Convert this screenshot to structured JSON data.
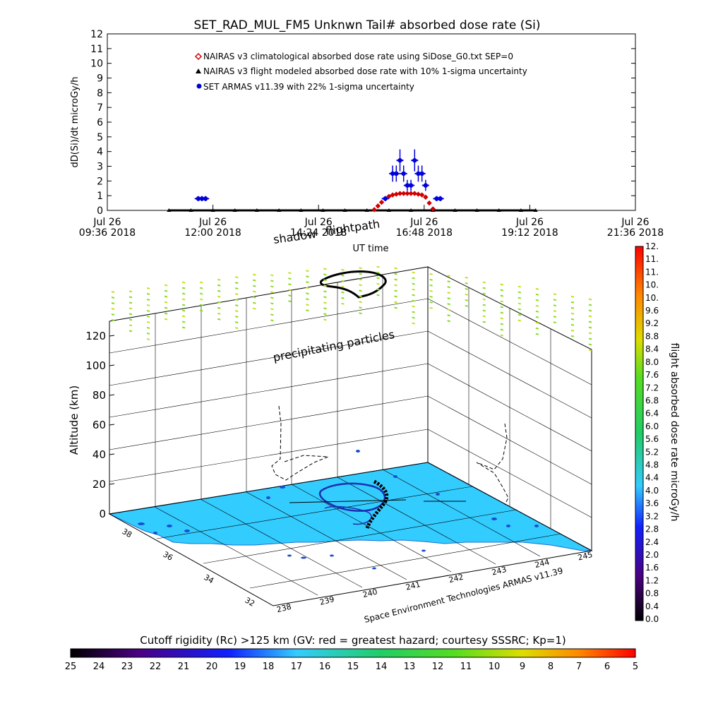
{
  "chart_data": [
    {
      "type": "scatter",
      "title": "SET_RAD_MUL_FM5 Unknwn Tail#  absorbed dose rate (Si)",
      "xlabel": "UT time",
      "ylabel": "dD(Si)/dt microGy/h",
      "xlim": [
        "2018-07-26T09:36",
        "2018-07-26T21:36"
      ],
      "ylim": [
        0,
        12
      ],
      "y_ticks": [
        0,
        1,
        2,
        3,
        4,
        5,
        6,
        7,
        8,
        9,
        10,
        11,
        12
      ],
      "x_ticks": [
        {
          "day": "Jul 26",
          "time": "09:36 2018"
        },
        {
          "day": "Jul 26",
          "time": "12:00 2018"
        },
        {
          "day": "Jul 26",
          "time": "14:24 2018"
        },
        {
          "day": "Jul 26",
          "time": "16:48 2018"
        },
        {
          "day": "Jul 26",
          "time": "19:12 2018"
        },
        {
          "day": "Jul 26",
          "time": "21:36 2018"
        }
      ],
      "legend": [
        {
          "name": "NAIRAS v3 climatological absorbed dose rate using SiDose_G0.txt SEP=0",
          "color": "#d00000",
          "marker": "diamond"
        },
        {
          "name": "NAIRAS v3 flight modeled absorbed dose rate with 10% 1-sigma uncertainty",
          "color": "#000000",
          "marker": "triangle"
        },
        {
          "name": "SET ARMAS v11.39 with 22% 1-sigma uncertainty",
          "color": "#0000dd",
          "marker": "circle"
        }
      ],
      "legend_placement": "top-center",
      "series": [
        {
          "name": "NAIRAS v3 flight modeled absorbed dose rate with 10% 1-sigma uncertainty",
          "x": [
            "11:00",
            "11:30",
            "12:00",
            "12:30",
            "13:00",
            "13:30",
            "14:00",
            "14:30",
            "15:00",
            "15:30",
            "16:00",
            "16:30",
            "17:00",
            "17:30",
            "18:00",
            "18:30",
            "19:00",
            "19:20"
          ],
          "y": [
            0,
            0,
            0,
            0,
            0,
            0,
            0,
            0,
            0,
            0,
            0,
            0,
            0,
            0,
            0,
            0,
            0,
            0
          ]
        },
        {
          "name": "NAIRAS v3 climatological absorbed dose rate using SiDose_G0.txt SEP=0",
          "x": [
            "15:40",
            "15:45",
            "15:50",
            "15:55",
            "16:00",
            "16:05",
            "16:10",
            "16:15",
            "16:20",
            "16:25",
            "16:30",
            "16:35",
            "16:40",
            "16:45",
            "16:50",
            "16:55",
            "17:00"
          ],
          "y": [
            0.05,
            0.3,
            0.55,
            0.8,
            0.95,
            1.05,
            1.1,
            1.15,
            1.15,
            1.15,
            1.15,
            1.15,
            1.1,
            1.05,
            0.9,
            0.5,
            0.1
          ]
        },
        {
          "name": "SET ARMAS v11.39 with 22% 1-sigma uncertainty",
          "x": [
            "11:40",
            "11:45",
            "11:50",
            "15:55",
            "16:05",
            "16:10",
            "16:15",
            "16:20",
            "16:25",
            "16:30",
            "16:35",
            "16:40",
            "16:45",
            "16:50",
            "17:05",
            "17:10"
          ],
          "y": [
            0.8,
            0.8,
            0.8,
            0.8,
            2.5,
            2.5,
            3.4,
            2.5,
            1.7,
            1.7,
            3.4,
            2.5,
            2.5,
            1.7,
            0.8,
            0.8
          ]
        }
      ]
    },
    {
      "type": "scatter",
      "z_axis_label": "Altitude (km)",
      "z_ticks": [
        0,
        20,
        40,
        60,
        80,
        100,
        120
      ],
      "zlim": [
        0,
        130
      ],
      "longitude_ticks": [
        238,
        239,
        240,
        241,
        242,
        243,
        244,
        245
      ],
      "latitude_ticks": [
        32,
        34,
        36,
        38
      ],
      "annotations": [
        "shadow",
        "flightpath",
        "precipitating particles",
        "Space Environment Technologies ARMAS v11.39"
      ],
      "dose_colorbar": {
        "label": "flight absorbed dose rate microGy/h",
        "ticks": [
          "0.0",
          "0.4",
          "0.8",
          "1.2",
          "1.6",
          "2.0",
          "2.4",
          "2.8",
          "3.2",
          "3.6",
          "4.0",
          "4.4",
          "4.8",
          "5.2",
          "5.6",
          "6.0",
          "6.4",
          "6.8",
          "7.2",
          "7.6",
          "8.0",
          "8.4",
          "8.8",
          "9.2",
          "9.6",
          "10.",
          "10.",
          "11.",
          "11.",
          "12."
        ],
        "range": [
          0,
          12
        ]
      },
      "cutoff_colorbar": {
        "label": "Cutoff rigidity (Rc) >125 km (GV: red = greatest hazard; courtesy SSSRC; Kp=1)",
        "ticks": [
          "25",
          "24",
          "23",
          "22",
          "21",
          "20",
          "19",
          "18",
          "17",
          "16",
          "15",
          "14",
          "13",
          "12",
          "11",
          "10",
          "9",
          "8",
          "7",
          "6",
          "5"
        ]
      },
      "colors": {
        "ground": "#33ccff",
        "particles": "#88dd22",
        "flightpath": "#000000"
      }
    }
  ]
}
